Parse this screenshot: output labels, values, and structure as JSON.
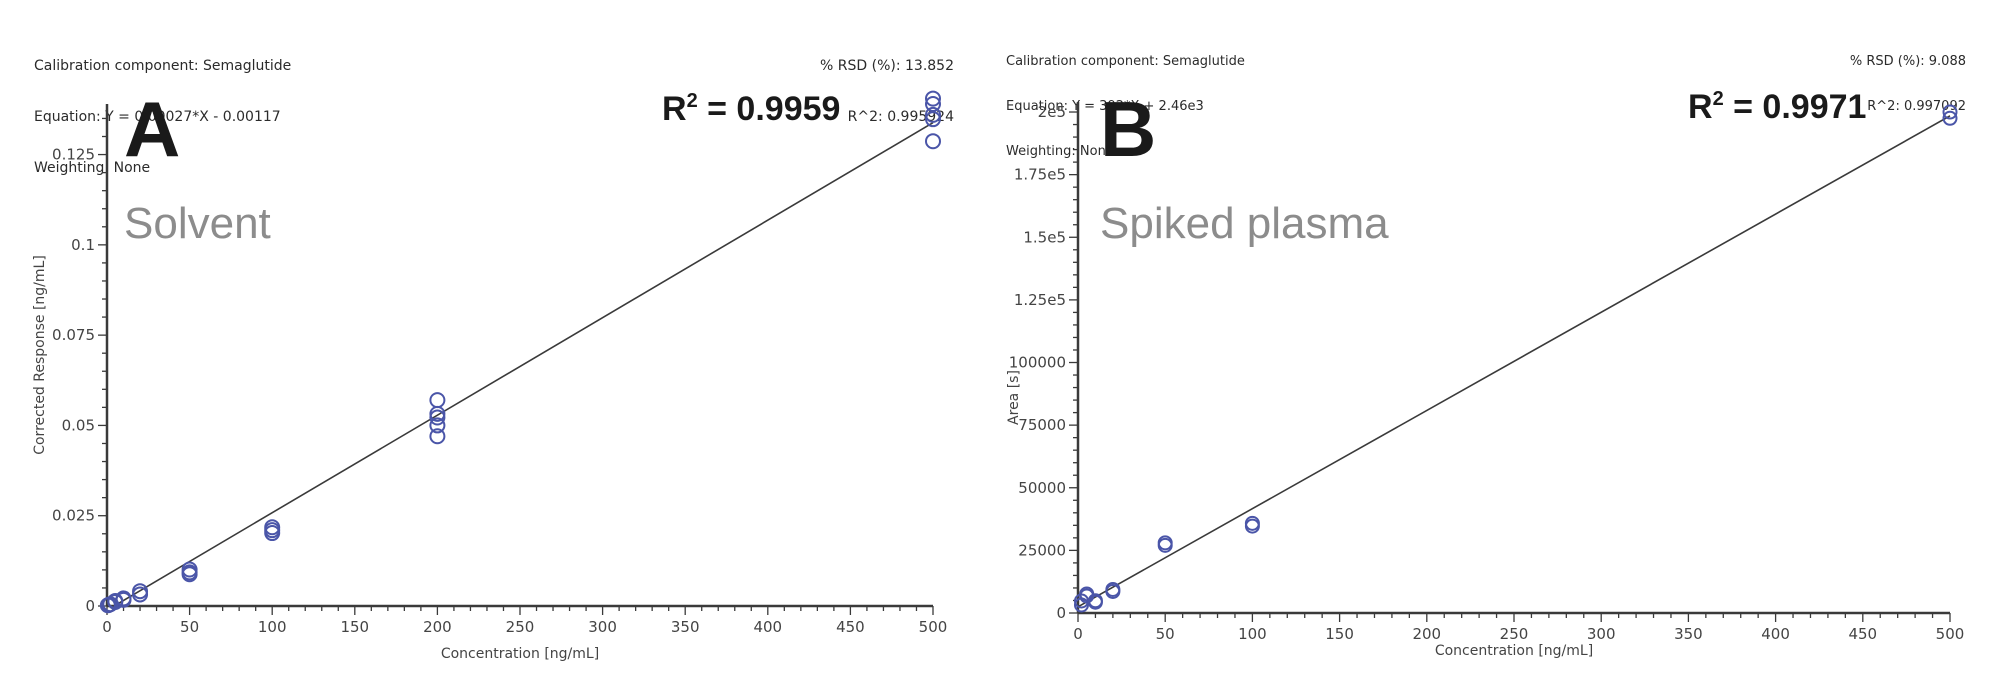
{
  "panels": [
    {
      "id": "A",
      "info_left": [
        "Calibration component: Semaglutide",
        "Equation: Y = 0.00027*X - 0.00117",
        "Weighting: None"
      ],
      "info_right": [
        "% RSD (%): 13.852",
        "R^2: 0.995924"
      ],
      "letter": "A",
      "subtitle": "Solvent",
      "r2_prefix": "R",
      "r2_sup": "2",
      "r2_value": " = 0.9959"
    },
    {
      "id": "B",
      "info_left": [
        "Calibration component: Semaglutide",
        "Equation: Y = 392*X + 2.46e3",
        "Weighting: None"
      ],
      "info_right": [
        "% RSD (%): 9.088",
        "R^2: 0.997092"
      ],
      "letter": "B",
      "subtitle": "Spiked plasma",
      "r2_prefix": "R",
      "r2_sup": "2",
      "r2_value": " = 0.9971"
    }
  ],
  "colors": {
    "marker": "#4a55a8",
    "fit_line": "#3a3a3a",
    "axis": "#3a3a3a",
    "subtitle": "#8c8c8c"
  },
  "chart_data": [
    {
      "type": "scatter",
      "title": "Calibration component: Semaglutide",
      "panel_label": "A",
      "annotation": "Solvent",
      "r2_annotation": "R2 = 0.9959",
      "xlabel": "Concentration [ng/mL]",
      "ylabel": "Corrected Response [ng/mL]",
      "xlim": [
        0,
        500
      ],
      "ylim": [
        0,
        0.139
      ],
      "xticks": [
        0,
        50,
        100,
        150,
        200,
        250,
        300,
        350,
        400,
        450,
        500
      ],
      "xtick_labels": [
        "0",
        "50",
        "100",
        "150",
        "200",
        "250",
        "300",
        "350",
        "400",
        "450",
        "500"
      ],
      "yticks": [
        0,
        0.025,
        0.05,
        0.075,
        0.1,
        0.125
      ],
      "ytick_labels": [
        "0",
        "0.025",
        "0.05",
        "0.075",
        "0.1",
        "0.125"
      ],
      "grid": false,
      "fit": {
        "slope": 0.00027,
        "intercept": -0.00117,
        "x_range": [
          0,
          500
        ]
      },
      "points": [
        {
          "x": 0.5,
          "y": 0.0002
        },
        {
          "x": 1,
          "y": 0.0003
        },
        {
          "x": 2,
          "y": 0.0005
        },
        {
          "x": 5,
          "y": 0.0011
        },
        {
          "x": 5,
          "y": 0.0014
        },
        {
          "x": 10,
          "y": 0.0017
        },
        {
          "x": 10,
          "y": 0.0021
        },
        {
          "x": 20,
          "y": 0.0032
        },
        {
          "x": 20,
          "y": 0.0041
        },
        {
          "x": 50,
          "y": 0.0088
        },
        {
          "x": 50,
          "y": 0.0093
        },
        {
          "x": 50,
          "y": 0.0101
        },
        {
          "x": 100,
          "y": 0.0202
        },
        {
          "x": 100,
          "y": 0.021
        },
        {
          "x": 100,
          "y": 0.0218
        },
        {
          "x": 200,
          "y": 0.047
        },
        {
          "x": 200,
          "y": 0.05
        },
        {
          "x": 200,
          "y": 0.0522
        },
        {
          "x": 200,
          "y": 0.0532
        },
        {
          "x": 200,
          "y": 0.057
        },
        {
          "x": 500,
          "y": 0.1287
        },
        {
          "x": 500,
          "y": 0.1348
        },
        {
          "x": 500,
          "y": 0.136
        },
        {
          "x": 500,
          "y": 0.139
        },
        {
          "x": 500,
          "y": 0.1405
        }
      ],
      "stats": {
        "rsd_percent": 13.852,
        "r2": 0.995924,
        "weighting": "None"
      }
    },
    {
      "type": "scatter",
      "title": "Calibration component: Semaglutide",
      "panel_label": "B",
      "annotation": "Spiked plasma",
      "r2_annotation": "R2 = 0.9971",
      "xlabel": "Concentration [ng/mL]",
      "ylabel": "Area [s]",
      "xlim": [
        0,
        500
      ],
      "ylim": [
        0,
        204000
      ],
      "xticks": [
        0,
        50,
        100,
        150,
        200,
        250,
        300,
        350,
        400,
        450,
        500
      ],
      "xtick_labels": [
        "0",
        "50",
        "100",
        "150",
        "200",
        "250",
        "300",
        "350",
        "400",
        "450",
        "500"
      ],
      "yticks": [
        0,
        25000,
        50000,
        75000,
        100000,
        125000,
        150000,
        175000,
        200000
      ],
      "ytick_labels": [
        "0",
        "25000",
        "50000",
        "75000",
        "100000",
        "1.25e5",
        "1.5e5",
        "1.75e5",
        "2e5"
      ],
      "grid": false,
      "fit": {
        "slope": 392,
        "intercept": 2460,
        "x_range": [
          0,
          500
        ]
      },
      "points": [
        {
          "x": 2,
          "y": 3200
        },
        {
          "x": 2,
          "y": 4800
        },
        {
          "x": 5,
          "y": 6800
        },
        {
          "x": 5,
          "y": 7600
        },
        {
          "x": 10,
          "y": 4300
        },
        {
          "x": 10,
          "y": 4900
        },
        {
          "x": 20,
          "y": 8600
        },
        {
          "x": 20,
          "y": 9400
        },
        {
          "x": 50,
          "y": 27000
        },
        {
          "x": 50,
          "y": 28000
        },
        {
          "x": 100,
          "y": 34700
        },
        {
          "x": 100,
          "y": 35800
        },
        {
          "x": 500,
          "y": 197500
        },
        {
          "x": 500,
          "y": 200000
        }
      ],
      "stats": {
        "rsd_percent": 9.088,
        "r2": 0.997092,
        "weighting": "None"
      }
    }
  ]
}
